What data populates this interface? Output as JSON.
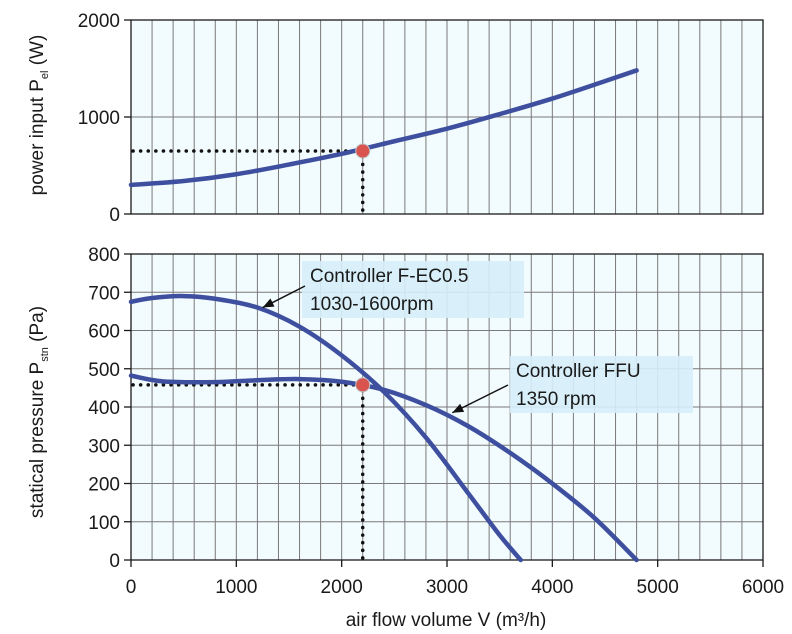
{
  "chart_data": [
    {
      "type": "line",
      "panel": "top",
      "ylabel_main": "power input P",
      "ylabel_sub": "el",
      "ylabel_unit": " (W)",
      "xlim": [
        0,
        6000
      ],
      "ylim": [
        0,
        2000
      ],
      "x_ticks": [
        0,
        1000,
        2000,
        3000,
        4000,
        5000,
        6000
      ],
      "y_ticks": [
        0,
        1000,
        2000
      ],
      "grid": true,
      "series": [
        {
          "color": "#3d4f9e",
          "x": [
            0,
            500,
            1000,
            1500,
            2000,
            2500,
            3000,
            3500,
            4000,
            4500,
            4800
          ],
          "y": [
            300,
            340,
            410,
            510,
            620,
            750,
            880,
            1030,
            1190,
            1370,
            1480
          ]
        }
      ],
      "operating_point": {
        "x": 2200,
        "y": 650,
        "color": "#d9534f"
      }
    },
    {
      "type": "line",
      "panel": "bottom",
      "ylabel_main": "statical pressure P",
      "ylabel_sub": "stn",
      "ylabel_unit": " (Pa)",
      "xlabel": "air flow volume V (m³/h)",
      "xlim": [
        0,
        6000
      ],
      "ylim": [
        0,
        800
      ],
      "x_ticks": [
        0,
        1000,
        2000,
        3000,
        4000,
        5000,
        6000
      ],
      "y_ticks": [
        0,
        100,
        200,
        300,
        400,
        500,
        600,
        700,
        800
      ],
      "grid": true,
      "series": [
        {
          "color": "#3d4f9e",
          "x": [
            0,
            200,
            500,
            800,
            1200,
            1600,
            2000,
            2400,
            2800,
            3200,
            3500,
            3700
          ],
          "y": [
            675,
            685,
            690,
            683,
            660,
            610,
            535,
            440,
            320,
            175,
            65,
            0
          ]
        },
        {
          "color": "#3d4f9e",
          "x": [
            0,
            300,
            800,
            1200,
            1600,
            2000,
            2400,
            2800,
            3200,
            3600,
            4000,
            4400,
            4800
          ],
          "y": [
            482,
            467,
            465,
            470,
            473,
            466,
            445,
            405,
            350,
            280,
            200,
            110,
            0
          ]
        }
      ],
      "operating_point": {
        "x": 2200,
        "y": 458,
        "color": "#d9534f"
      },
      "annotations": [
        {
          "line1": "Controller F-EC0.5",
          "line2": "1030-1600rpm",
          "target_x": 1250,
          "target_y": 660
        },
        {
          "line1": "Controller FFU",
          "line2": "1350 rpm",
          "target_x": 3050,
          "target_y": 385
        }
      ]
    }
  ]
}
